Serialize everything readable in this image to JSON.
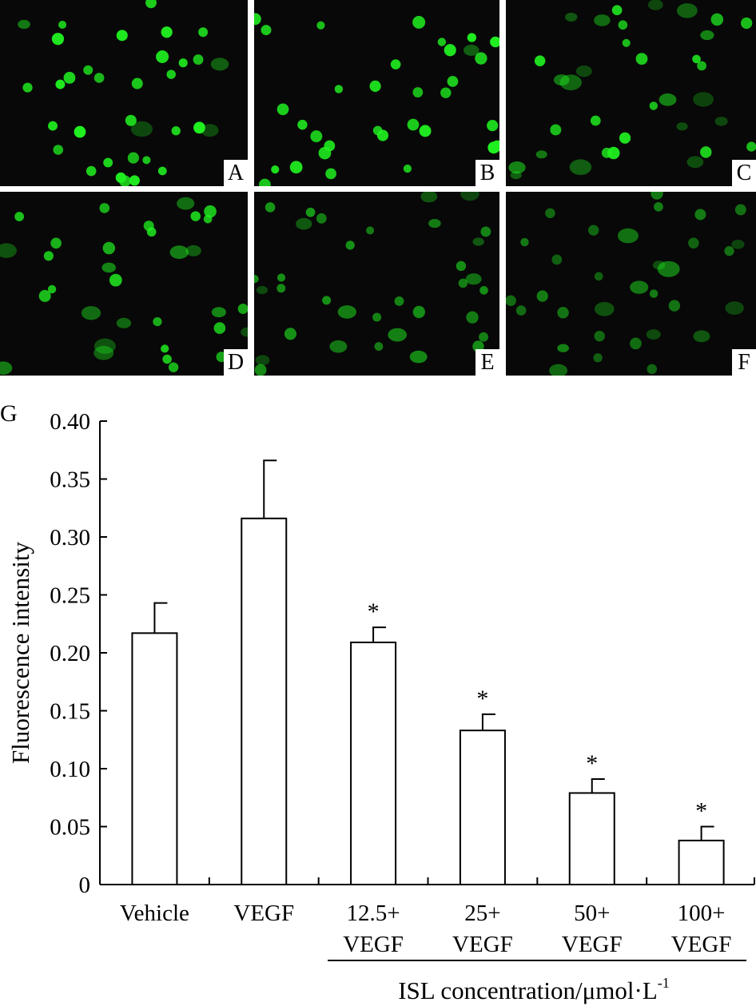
{
  "panels": [
    {
      "label": "A",
      "brightness": 1.0,
      "dim": 0.15
    },
    {
      "label": "B",
      "brightness": 1.0,
      "dim": 0.05
    },
    {
      "label": "C",
      "brightness": 0.95,
      "dim": 0.45
    },
    {
      "label": "D",
      "brightness": 0.85,
      "dim": 0.45
    },
    {
      "label": "E",
      "brightness": 0.65,
      "dim": 0.35
    },
    {
      "label": "F",
      "brightness": 0.5,
      "dim": 0.45
    }
  ],
  "colors": {
    "micrograph_bg": "#080808",
    "cell": "#20f020",
    "bar_fill": "#ffffff",
    "bar_stroke": "#000000"
  },
  "chart_data": {
    "panel_label": "G",
    "type": "bar",
    "categories": [
      [
        "Vehicle"
      ],
      [
        "VEGF"
      ],
      [
        "12.5+",
        "VEGF"
      ],
      [
        "25+",
        "VEGF"
      ],
      [
        "50+",
        "VEGF"
      ],
      [
        "100+",
        "VEGF"
      ]
    ],
    "values": [
      0.217,
      0.316,
      0.209,
      0.133,
      0.079,
      0.038
    ],
    "errors": [
      0.026,
      0.05,
      0.013,
      0.014,
      0.012,
      0.012
    ],
    "significance": [
      "",
      "",
      "*",
      "*",
      "*",
      "*"
    ],
    "ylabel": "Fluorescence intensity",
    "ylim": [
      0,
      0.4
    ],
    "yticks": [
      "0",
      "0.05",
      "0.10",
      "0.15",
      "0.20",
      "0.25",
      "0.30",
      "0.35",
      "0.40"
    ],
    "group_label": "ISL concentration/μmol·L",
    "group_label_sup": "-1",
    "grid": false
  }
}
